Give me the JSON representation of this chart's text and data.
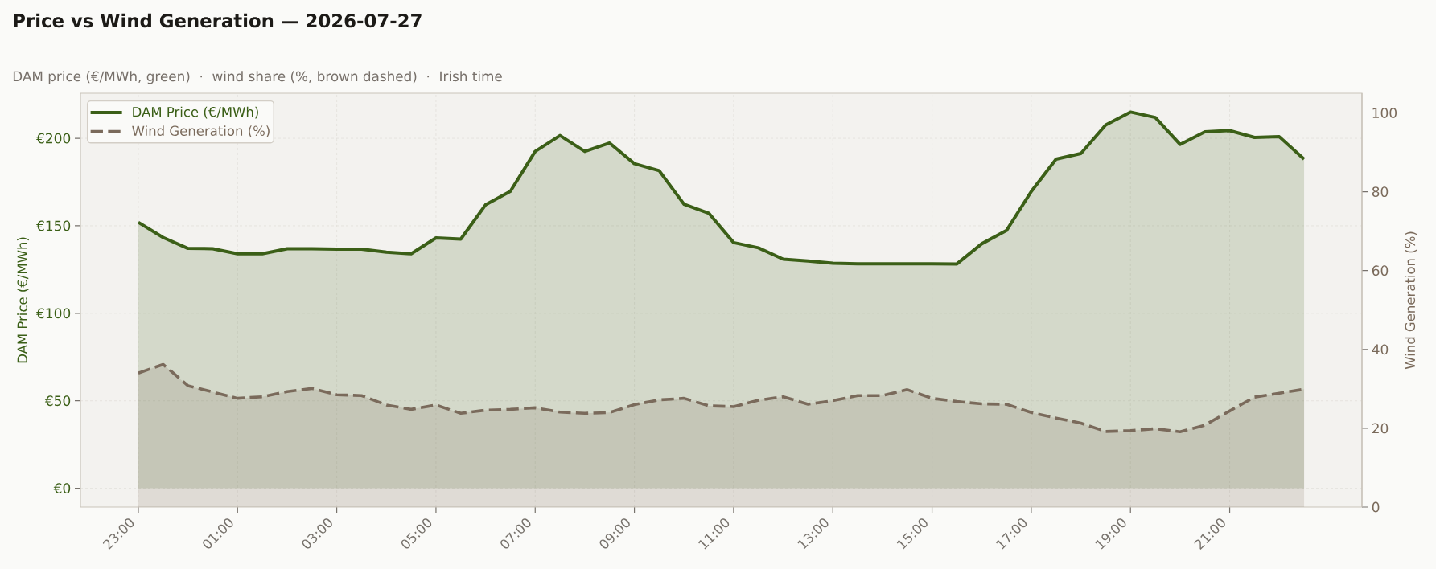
{
  "chart_data": {
    "type": "area",
    "title": "Price vs Wind Generation — 2026-07-27",
    "subtitle": "DAM price (€/MWh, green)  ·  wind share (%, brown dashed)  ·  Irish time",
    "ylabel": "DAM Price (€/MWh)",
    "y2label": "Wind Generation (%)",
    "x": [
      "2026-07-26T23:00",
      "2026-07-26T23:30",
      "2026-07-27T00:00",
      "2026-07-27T00:30",
      "2026-07-27T01:00",
      "2026-07-27T01:30",
      "2026-07-27T02:00",
      "2026-07-27T02:30",
      "2026-07-27T03:00",
      "2026-07-27T03:30",
      "2026-07-27T04:00",
      "2026-07-27T04:30",
      "2026-07-27T05:00",
      "2026-07-27T05:30",
      "2026-07-27T06:00",
      "2026-07-27T06:30",
      "2026-07-27T07:00",
      "2026-07-27T07:30",
      "2026-07-27T08:00",
      "2026-07-27T08:30",
      "2026-07-27T09:00",
      "2026-07-27T09:30",
      "2026-07-27T10:00",
      "2026-07-27T10:30",
      "2026-07-27T11:00",
      "2026-07-27T11:30",
      "2026-07-27T12:00",
      "2026-07-27T12:30",
      "2026-07-27T13:00",
      "2026-07-27T13:30",
      "2026-07-27T14:00",
      "2026-07-27T14:30",
      "2026-07-27T15:00",
      "2026-07-27T15:30",
      "2026-07-27T16:00",
      "2026-07-27T16:30",
      "2026-07-27T17:00",
      "2026-07-27T17:30",
      "2026-07-27T18:00",
      "2026-07-27T18:30",
      "2026-07-27T19:00",
      "2026-07-27T19:30",
      "2026-07-27T20:00",
      "2026-07-27T20:30",
      "2026-07-27T21:00",
      "2026-07-27T21:30",
      "2026-07-27T22:00",
      "2026-07-27T22:30"
    ],
    "xlim": [
      "2026-07-26T21:50",
      "2026-07-27T23:40"
    ],
    "xticks": [
      {
        "value": "2026-07-26T23:00",
        "label": "23:00"
      },
      {
        "value": "2026-07-27T01:00",
        "label": "01:00"
      },
      {
        "value": "2026-07-27T03:00",
        "label": "03:00"
      },
      {
        "value": "2026-07-27T05:00",
        "label": "05:00"
      },
      {
        "value": "2026-07-27T07:00",
        "label": "07:00"
      },
      {
        "value": "2026-07-27T09:00",
        "label": "09:00"
      },
      {
        "value": "2026-07-27T11:00",
        "label": "11:00"
      },
      {
        "value": "2026-07-27T13:00",
        "label": "13:00"
      },
      {
        "value": "2026-07-27T15:00",
        "label": "15:00"
      },
      {
        "value": "2026-07-27T17:00",
        "label": "17:00"
      },
      {
        "value": "2026-07-27T19:00",
        "label": "19:00"
      },
      {
        "value": "2026-07-27T21:00",
        "label": "21:00"
      }
    ],
    "ylim": [
      -10.75,
      225.75
    ],
    "yticks": [
      {
        "value": 0,
        "label": "€0"
      },
      {
        "value": 50,
        "label": "€50"
      },
      {
        "value": 100,
        "label": "€100"
      },
      {
        "value": 150,
        "label": "€150"
      },
      {
        "value": 200,
        "label": "€200"
      }
    ],
    "y2lim": [
      0,
      105
    ],
    "y2ticks": [
      0,
      20,
      40,
      60,
      80,
      100
    ],
    "grid": true,
    "legend": "top left",
    "series": [
      {
        "name": "DAM Price (€/MWh)",
        "color": "#3b5f17",
        "line_style": "solid",
        "values": [
          152,
          143.3,
          137.1,
          136.9,
          134,
          134,
          136.9,
          136.9,
          136.7,
          136.7,
          134.9,
          134,
          143.1,
          142.4,
          162,
          169.7,
          192.5,
          201.6,
          192.5,
          197.3,
          185.5,
          181.5,
          162.3,
          157.2,
          140.4,
          137.4,
          130.9,
          129.9,
          128.6,
          128.3,
          128.3,
          128.3,
          128.3,
          128.2,
          139.7,
          147.3,
          169.6,
          188.1,
          191.3,
          207.6,
          215,
          211.9,
          196.5,
          203.7,
          204.4,
          200.5,
          200.9,
          188.1
        ]
      },
      {
        "name": "Wind Generation (%)",
        "color": "#7a6a5b",
        "axis": "y2",
        "line_style": "dashed",
        "values": [
          34,
          36.2,
          30.8,
          29.2,
          27.6,
          28,
          29.3,
          30.1,
          28.5,
          28.3,
          25.9,
          24.8,
          25.9,
          23.8,
          24.6,
          24.8,
          25.2,
          24.1,
          23.8,
          24,
          26,
          27.2,
          27.6,
          25.7,
          25.5,
          27.1,
          28,
          26.1,
          27,
          28.3,
          28.3,
          29.8,
          27.6,
          26.8,
          26.2,
          26.1,
          24,
          22.6,
          21.3,
          19.2,
          19.4,
          19.9,
          19.1,
          20.8,
          24.4,
          27.9,
          28.9,
          29.9
        ]
      }
    ]
  }
}
